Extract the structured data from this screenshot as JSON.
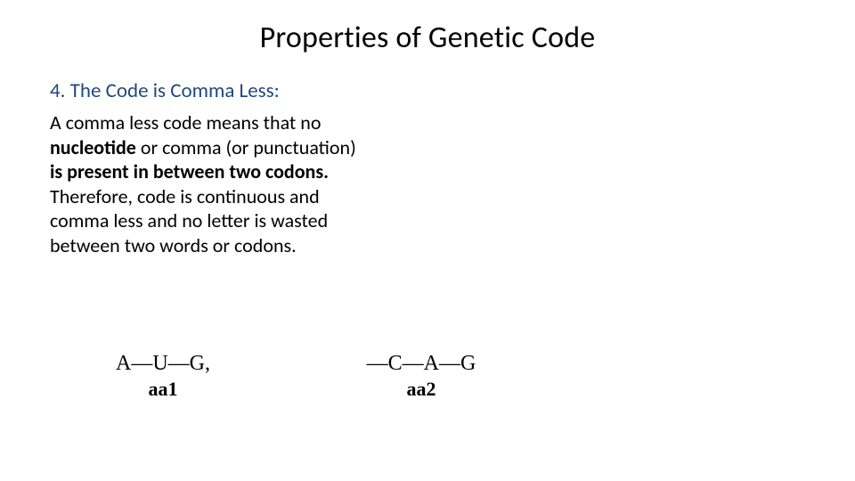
{
  "title": "Properties of Genetic Code",
  "subheading": "4. The Code is Comma Less:",
  "paragraph": {
    "p1": "A comma less code means that no ",
    "b1": "nucleotide",
    "p2": " or comma (or punctuation) ",
    "b2": "is present in between two codons.",
    "p3": " Therefore, code is continuous and comma less and no letter is wasted between two words or codons."
  },
  "diagram": {
    "codon1": {
      "line": "A—U—G,",
      "label": "aa1"
    },
    "codon2": {
      "line": "—C—A—G",
      "label": "aa2"
    }
  },
  "colors": {
    "background": "#ffffff",
    "title": "#000000",
    "subheading": "#1f497d",
    "body": "#000000",
    "diagram_text": "#000000"
  },
  "fonts": {
    "title_size_pt": 26,
    "subheading_size_pt": 17,
    "body_size_pt": 17,
    "diagram_size_pt": 18,
    "diagram_label_weight": "bold"
  }
}
